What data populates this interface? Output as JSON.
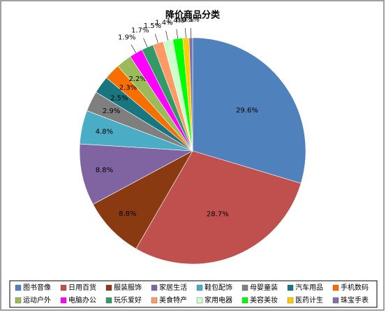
{
  "chart_data": {
    "type": "pie",
    "title": "降价商品分类",
    "categories": [
      "图书音像",
      "日用百货",
      "服装服饰",
      "家居生活",
      "鞋包配饰",
      "母婴童装",
      "汽车用品",
      "手机数码",
      "运动户外",
      "电脑办公",
      "玩乐爱好",
      "美食特产",
      "家用电器",
      "美容美妆",
      "医药计生",
      "珠宝手表"
    ],
    "values": [
      29.6,
      28.7,
      8.8,
      8.8,
      4.8,
      2.9,
      2.5,
      2.3,
      2.2,
      1.9,
      1.7,
      1.5,
      1.4,
      1.4,
      0.9,
      0.5
    ],
    "value_labels": [
      "29.6%",
      "28.7%",
      "8.8%",
      "8.8%",
      "4.8%",
      "2.9%",
      "2.5%",
      "2.3%",
      "2.2%",
      "1.9%",
      "1.7%",
      "1.5%",
      "1.4%",
      "1.4%",
      "0.9%",
      "0.5%"
    ],
    "colors": [
      "#4f81bd",
      "#c0504d",
      "#8a3a10",
      "#8064a2",
      "#4bacc6",
      "#7f7f7f",
      "#17767e",
      "#f66f00",
      "#9bbb59",
      "#ff00ff",
      "#339966",
      "#ff9966",
      "#ccffcc",
      "#00ff00",
      "#ffcc00",
      "#7f6fa8"
    ],
    "legend": "bottom"
  }
}
